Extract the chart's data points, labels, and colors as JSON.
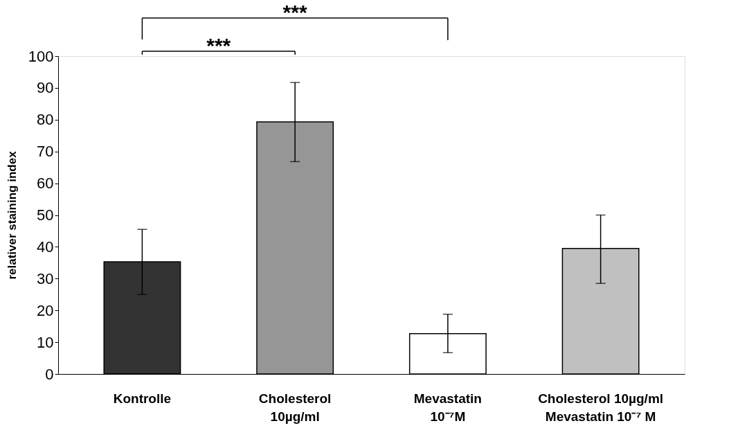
{
  "chart_data": {
    "type": "bar",
    "ylabel": "relativer staining index",
    "categories": [
      "Kontrolle",
      "Cholesterol\n10µg/ml",
      "Mevastatin\n10⁻⁷M",
      "Cholesterol 10µg/ml\nMevastatin 10⁻⁷ M"
    ],
    "values": [
      35.3,
      79.3,
      12.7,
      39.5
    ],
    "colors": [
      "#333333",
      "#969696",
      "#ffffff",
      "#c0c0c0"
    ],
    "errors": [
      [
        25.0,
        45.5
      ],
      [
        66.8,
        91.7
      ],
      [
        6.7,
        18.8
      ],
      [
        28.5,
        50.0
      ]
    ],
    "ylim": [
      0,
      100
    ],
    "yticks": [
      0,
      10,
      20,
      30,
      40,
      50,
      60,
      70,
      80,
      90,
      100
    ],
    "annotations": [
      "***",
      "***"
    ],
    "grid": false,
    "legend": false
  }
}
